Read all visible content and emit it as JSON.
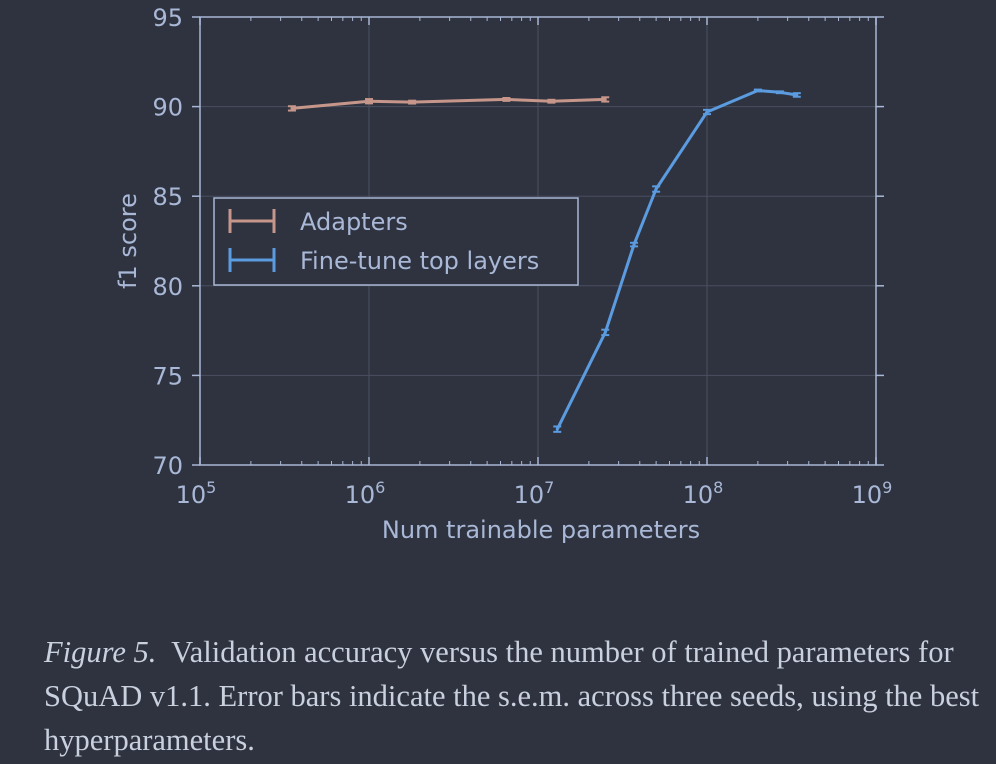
{
  "chart_data": {
    "type": "line",
    "xlabel": "Num trainable parameters",
    "ylabel": "f1 score",
    "xscale": "log",
    "xlim": [
      100000,
      1000000000
    ],
    "ylim": [
      70,
      95
    ],
    "xticks": [
      {
        "value": 100000,
        "base": "10",
        "exp": "5"
      },
      {
        "value": 1000000,
        "base": "10",
        "exp": "6"
      },
      {
        "value": 10000000,
        "base": "10",
        "exp": "7"
      },
      {
        "value": 100000000,
        "base": "10",
        "exp": "8"
      },
      {
        "value": 1000000000,
        "base": "10",
        "exp": "9"
      }
    ],
    "yticks": [
      {
        "value": 70,
        "label": "70"
      },
      {
        "value": 75,
        "label": "75"
      },
      {
        "value": 80,
        "label": "80"
      },
      {
        "value": 85,
        "label": "85"
      },
      {
        "value": 90,
        "label": "90"
      },
      {
        "value": 95,
        "label": "95"
      }
    ],
    "grid": true,
    "legend_position": "center-left",
    "series": [
      {
        "name": "Adapters",
        "color": "#c7968a",
        "x": [
          350000,
          1000000,
          1800000,
          6500000,
          12000000,
          25000000
        ],
        "y": [
          89.9,
          90.3,
          90.25,
          90.4,
          90.3,
          90.4
        ],
        "err": [
          0.12,
          0.12,
          0.08,
          0.08,
          0.08,
          0.12
        ]
      },
      {
        "name": "Fine-tune top layers",
        "color": "#5b9be0",
        "x": [
          13000000,
          25000000,
          37000000,
          50000000,
          100000000,
          200000000,
          270000000,
          340000000
        ],
        "y": [
          72.0,
          77.4,
          82.3,
          85.4,
          89.7,
          90.9,
          90.8,
          90.65
        ],
        "err": [
          0.15,
          0.15,
          0.1,
          0.15,
          0.12,
          0.05,
          0.05,
          0.1
        ]
      }
    ]
  },
  "caption": {
    "label": "Figure 5.",
    "text": "Validation accuracy versus the number of trained parameters for SQuAD v1.1. Error bars indicate the s.e.m. across three seeds, using the best hyperparameters."
  }
}
